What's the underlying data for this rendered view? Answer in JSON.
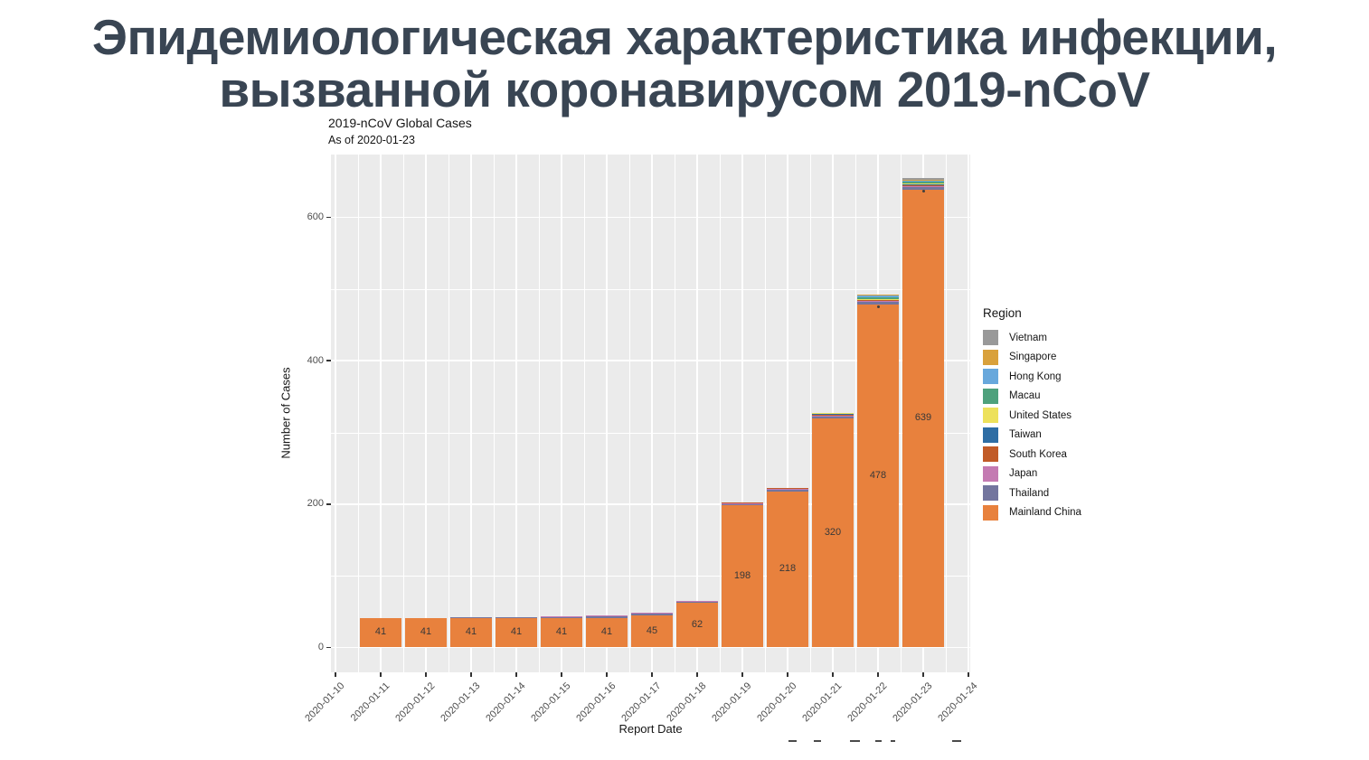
{
  "slide": {
    "title_line1": "Эпидемиологическая характеристика инфекции,",
    "title_line2": "вызванной коронавирусом 2019-nCoV",
    "title_color": "#394553"
  },
  "chart_data": {
    "type": "bar",
    "title": "2019-nCoV Global Cases",
    "subtitle": "As of 2020-01-23",
    "xlabel": "Report Date",
    "ylabel": "Number of Cases",
    "ylim": [
      0,
      688
    ],
    "yticks": [
      0,
      200,
      400,
      600
    ],
    "yminor": [
      100,
      300,
      500
    ],
    "grid": "on",
    "panel_background": "#EBEBEB",
    "legend_position": "right",
    "legend_title": "Region",
    "legend": [
      {
        "name": "Vietnam",
        "color": "#999999"
      },
      {
        "name": "Singapore",
        "color": "#D9A13C"
      },
      {
        "name": "Hong Kong",
        "color": "#68A8DC"
      },
      {
        "name": "Macau",
        "color": "#4EA17C"
      },
      {
        "name": "United States",
        "color": "#EDE15B"
      },
      {
        "name": "Taiwan",
        "color": "#2E6DA4"
      },
      {
        "name": "South Korea",
        "color": "#C15B28"
      },
      {
        "name": "Japan",
        "color": "#C47AB2"
      },
      {
        "name": "Thailand",
        "color": "#73759E"
      },
      {
        "name": "Mainland China",
        "color": "#E8813D"
      }
    ],
    "stack_order": [
      "Mainland China",
      "Thailand",
      "Japan",
      "South Korea",
      "Taiwan",
      "United States",
      "Macau",
      "Hong Kong",
      "Singapore",
      "Vietnam"
    ],
    "x_tick_labels": [
      "2020-01-10",
      "2020-01-11",
      "2020-01-12",
      "2020-01-13",
      "2020-01-14",
      "2020-01-15",
      "2020-01-16",
      "2020-01-17",
      "2020-01-18",
      "2020-01-19",
      "2020-01-20",
      "2020-01-21",
      "2020-01-22",
      "2020-01-23",
      "2020-01-24"
    ],
    "bars": [
      {
        "date": "2020-01-11",
        "label": "41",
        "dot": false,
        "segments": {
          "Mainland China": 41
        }
      },
      {
        "date": "2020-01-12",
        "label": "41",
        "dot": false,
        "segments": {
          "Mainland China": 41
        }
      },
      {
        "date": "2020-01-13",
        "label": "41",
        "dot": false,
        "segments": {
          "Mainland China": 41,
          "Thailand": 1
        }
      },
      {
        "date": "2020-01-14",
        "label": "41",
        "dot": false,
        "segments": {
          "Mainland China": 41,
          "Thailand": 1
        }
      },
      {
        "date": "2020-01-15",
        "label": "41",
        "dot": false,
        "segments": {
          "Mainland China": 41,
          "Thailand": 1,
          "Japan": 1
        }
      },
      {
        "date": "2020-01-16",
        "label": "41",
        "dot": false,
        "segments": {
          "Mainland China": 41,
          "Thailand": 2,
          "Japan": 1
        }
      },
      {
        "date": "2020-01-17",
        "label": "45",
        "dot": false,
        "segments": {
          "Mainland China": 45,
          "Thailand": 2,
          "Japan": 1
        }
      },
      {
        "date": "2020-01-18",
        "label": "62",
        "dot": false,
        "segments": {
          "Mainland China": 62,
          "Thailand": 2,
          "Japan": 1
        }
      },
      {
        "date": "2020-01-19",
        "label": "198",
        "dot": false,
        "segments": {
          "Mainland China": 198,
          "Thailand": 2,
          "Japan": 1,
          "South Korea": 1
        }
      },
      {
        "date": "2020-01-20",
        "label": "218",
        "dot": false,
        "segments": {
          "Mainland China": 218,
          "Thailand": 2,
          "Japan": 1,
          "South Korea": 1
        }
      },
      {
        "date": "2020-01-21",
        "label": "320",
        "dot": false,
        "segments": {
          "Mainland China": 320,
          "Thailand": 2,
          "Japan": 1,
          "South Korea": 1,
          "Taiwan": 1,
          "United States": 1
        }
      },
      {
        "date": "2020-01-22",
        "label": "478",
        "dot": true,
        "segments": {
          "Mainland China": 478,
          "Thailand": 4,
          "Japan": 1,
          "South Korea": 1,
          "Taiwan": 1,
          "United States": 1,
          "Macau": 2,
          "Hong Kong": 2,
          "Singapore": 1
        }
      },
      {
        "date": "2020-01-23",
        "label": "639",
        "dot": true,
        "segments": {
          "Mainland China": 639,
          "Thailand": 4,
          "Japan": 1,
          "South Korea": 1,
          "Taiwan": 1,
          "United States": 1,
          "Macau": 2,
          "Hong Kong": 2,
          "Singapore": 1,
          "Vietnam": 2
        }
      }
    ]
  },
  "footer": {
    "fragments": [
      {
        "x": 872,
        "w": 9
      },
      {
        "x": 900,
        "w": 8
      },
      {
        "x": 940,
        "w": 11
      },
      {
        "x": 968,
        "w": 7
      },
      {
        "x": 985,
        "w": 5
      },
      {
        "x": 1053,
        "w": 10
      }
    ]
  }
}
